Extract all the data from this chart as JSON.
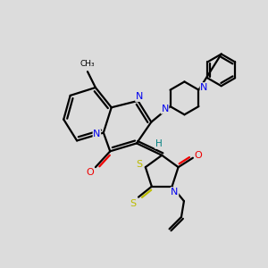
{
  "bg_color": "#dcdcdc",
  "bond_color": "#000000",
  "N_color": "#0000ee",
  "O_color": "#ee0000",
  "S_color": "#bbbb00",
  "H_color": "#008080",
  "line_width": 1.6,
  "fig_size": [
    3.0,
    3.0
  ],
  "dpi": 100,
  "xlim": [
    0,
    10
  ],
  "ylim": [
    0,
    10
  ]
}
